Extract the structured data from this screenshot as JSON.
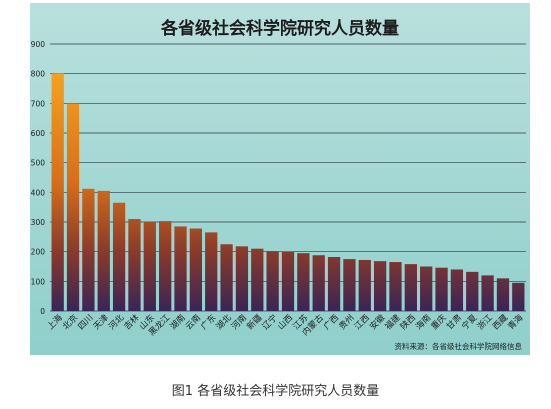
{
  "colors": {
    "panel_bg_top": "#b9e0dd",
    "panel_bg_bottom": "#8fcfcb",
    "bar_top": "#f4a21e",
    "bar_mid": "#c25a17",
    "bar_bottom": "#3a2456",
    "grid": "#2a3b4a",
    "text": "#1d1d1d"
  },
  "caption": "图1  各省级社会科学院研究人员数量",
  "source_note": "资料来源：各省级社会科学院网络信息",
  "chart_data": {
    "type": "bar",
    "title": "各省级社会科学院研究人员数量",
    "xlabel": "",
    "ylabel": "",
    "ylim": [
      0,
      900
    ],
    "yticks": [
      0,
      100,
      200,
      300,
      400,
      500,
      600,
      700,
      800,
      900
    ],
    "grid": true,
    "categories": [
      "上海",
      "北京",
      "四川",
      "天津",
      "河北",
      "吉林",
      "山东",
      "黑龙江",
      "湖南",
      "云南",
      "广东",
      "湖北",
      "河南",
      "新疆",
      "辽宁",
      "山西",
      "江苏",
      "内蒙古",
      "广西",
      "贵州",
      "江西",
      "安徽",
      "福建",
      "陕西",
      "海南",
      "重庆",
      "甘肃",
      "宁夏",
      "浙江",
      "西藏",
      "青海"
    ],
    "values": [
      800,
      700,
      412,
      405,
      365,
      310,
      300,
      303,
      285,
      278,
      265,
      225,
      218,
      210,
      202,
      200,
      195,
      188,
      182,
      175,
      172,
      168,
      165,
      158,
      150,
      146,
      140,
      132,
      120,
      110,
      95
    ]
  }
}
